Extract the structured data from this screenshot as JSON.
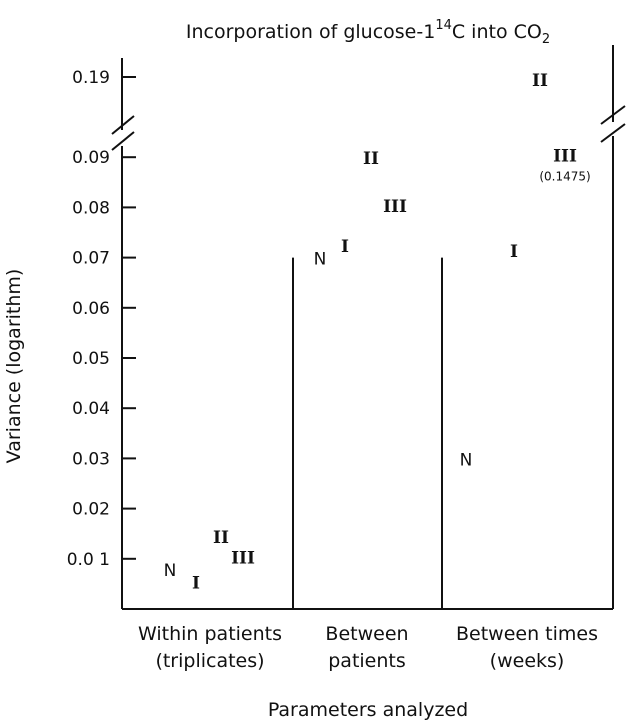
{
  "chart_data": {
    "type": "scatter",
    "title_main": "Incorporation of glucose-1",
    "title_sup": "14",
    "title_mid": "C into CO",
    "title_sub": "2",
    "ylabel": "Variance (logarithm)",
    "xlabel": "Parameters analyzed",
    "ylim": [
      0,
      0.095
    ],
    "y_break": true,
    "y_break_upper_tick": "0.19",
    "yticks": [
      0.01,
      0.02,
      0.03,
      0.04,
      0.05,
      0.06,
      0.07,
      0.08,
      0.09
    ],
    "ytick_labels": [
      "0.0 1",
      "0.02",
      "0.03",
      "0.04",
      "0.05",
      "0.06",
      "0.07",
      "0.08",
      "0.09"
    ],
    "groups": [
      {
        "label_line1": "Within patients",
        "label_line2": "(triplicates)"
      },
      {
        "label_line1": "Between",
        "label_line2": "patients"
      },
      {
        "label_line1": "Between times",
        "label_line2": "(weeks)"
      }
    ],
    "series": [
      {
        "name": "N",
        "values": [
          0.008,
          0.07,
          0.03
        ]
      },
      {
        "name": "I",
        "values": [
          0.0055,
          0.0725,
          0.0715
        ]
      },
      {
        "name": "II",
        "values": [
          0.0145,
          0.09,
          0.19
        ]
      },
      {
        "name": "III",
        "values": [
          0.0105,
          0.0805,
          0.1475
        ]
      }
    ],
    "annotation": "(0.1475)"
  }
}
